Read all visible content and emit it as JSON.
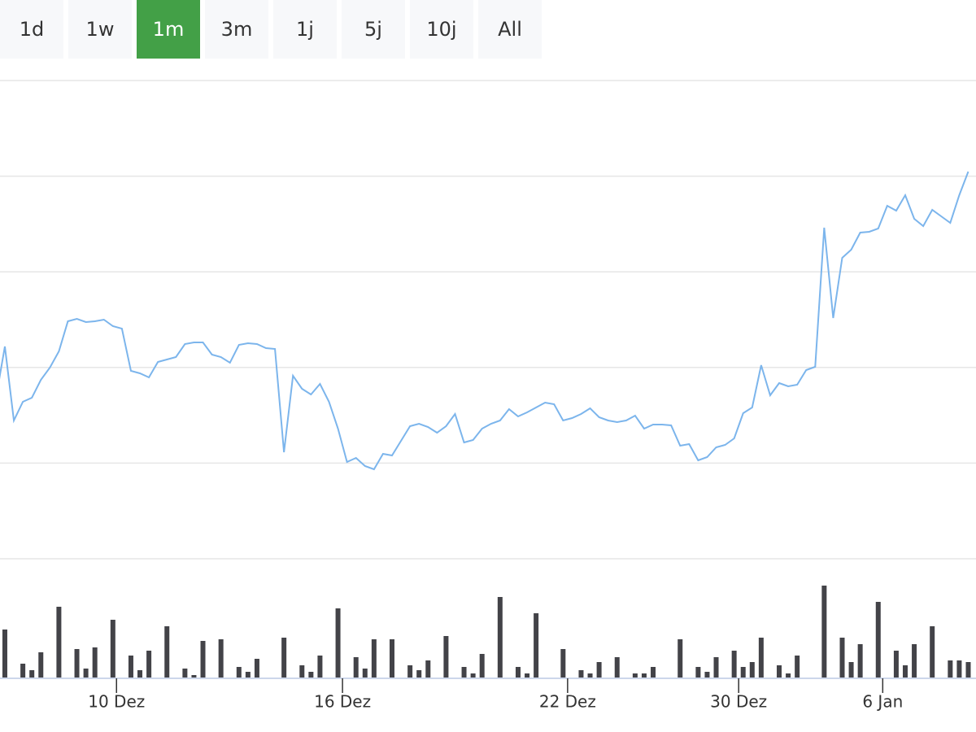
{
  "range_buttons": {
    "labels": [
      "1d",
      "1w",
      "1m",
      "3m",
      "1j",
      "5j",
      "10j",
      "All"
    ],
    "selected": 2
  },
  "chart_data": {
    "type": "line",
    "x": [
      0,
      1,
      2,
      3,
      4,
      5,
      6,
      7,
      8,
      9,
      10,
      11,
      12,
      13,
      14,
      15,
      16,
      17,
      18,
      19,
      20,
      21,
      22,
      23,
      24,
      25,
      26,
      27,
      28,
      29,
      30,
      31,
      32,
      33,
      34,
      35,
      36,
      37,
      38,
      39,
      40,
      41,
      42,
      43,
      44,
      45,
      46,
      47,
      48,
      49,
      50,
      51,
      52,
      53,
      54,
      55,
      56,
      57,
      58,
      59,
      60,
      61,
      62,
      63,
      64,
      65,
      66,
      67,
      68,
      69,
      70,
      71,
      72,
      73,
      74,
      75,
      76,
      77,
      78,
      79,
      80,
      81,
      82,
      83,
      84,
      85,
      86,
      87,
      88,
      89,
      90,
      91,
      92,
      93,
      94,
      95,
      96,
      97,
      98,
      99,
      100,
      101,
      102,
      103,
      104,
      105,
      106,
      107,
      108
    ],
    "series": [
      {
        "color": "#7cb5ec",
        "values": [
          197,
          261,
          170,
          193,
          198,
          220,
          235,
          255,
          292,
          295,
          291,
          292,
          294,
          286,
          283,
          231,
          228,
          223,
          242,
          245,
          248,
          264,
          266,
          266,
          251,
          248,
          241,
          263,
          265,
          264,
          259,
          258,
          131,
          225,
          209,
          202,
          215,
          193,
          160,
          119,
          124,
          114,
          110,
          129,
          127,
          145,
          163,
          166,
          162,
          155,
          163,
          178,
          143,
          146,
          160,
          166,
          170,
          184,
          175,
          180,
          186,
          192,
          190,
          170,
          173,
          178,
          185,
          174,
          170,
          168,
          170,
          176,
          160,
          165,
          165,
          164,
          139,
          141,
          121,
          125,
          137,
          140,
          148,
          179,
          186,
          238,
          201,
          216,
          212,
          214,
          232,
          236,
          407,
          296,
          370,
          380,
          401,
          402,
          406,
          434,
          428,
          447,
          418,
          409,
          429,
          421,
          413,
          447,
          476
        ]
      }
    ],
    "volume": {
      "color": "#434348",
      "x": [
        1,
        3,
        4,
        5,
        7,
        9,
        10,
        11,
        13,
        15,
        16,
        17,
        19,
        21,
        22,
        23,
        25,
        27,
        28,
        29,
        32,
        34,
        35,
        36,
        38,
        40,
        41,
        42,
        44,
        46,
        47,
        48,
        50,
        52,
        53,
        54,
        56,
        58,
        59,
        60,
        63,
        65,
        66,
        67,
        69,
        71,
        72,
        73,
        76,
        78,
        79,
        80,
        82,
        83,
        84,
        85,
        87,
        88,
        89,
        92,
        94,
        95,
        96,
        98,
        100,
        101,
        102,
        104,
        106,
        107,
        108
      ],
      "values": [
        59,
        17,
        9,
        31,
        87,
        35,
        11,
        37,
        71,
        27,
        9,
        33,
        63,
        11,
        3,
        45,
        47,
        13,
        7,
        23,
        49,
        15,
        7,
        27,
        85,
        25,
        11,
        47,
        47,
        15,
        9,
        21,
        51,
        13,
        5,
        29,
        99,
        13,
        5,
        79,
        35,
        9,
        5,
        19,
        25,
        5,
        5,
        13,
        47,
        13,
        7,
        25,
        33,
        13,
        19,
        49,
        15,
        5,
        27,
        113,
        49,
        19,
        41,
        93,
        33,
        15,
        41,
        63,
        21,
        21,
        19
      ],
      "ylim": [
        0,
        146
      ]
    },
    "xlim": [
      0.46,
      108.86
    ],
    "xticks": [
      {
        "value": 13.4,
        "label": "10 Dez"
      },
      {
        "value": 38.5,
        "label": "16 Dez"
      },
      {
        "value": 63.5,
        "label": "22 Dez"
      },
      {
        "value": 82.5,
        "label": "30 Dez"
      },
      {
        "value": 98.5,
        "label": "6 Jan"
      }
    ],
    "ylim": [
      0,
      588
    ],
    "grid_lines": [
      0,
      117.6,
      235.2,
      352.8,
      470.4,
      588
    ],
    "grid": true
  }
}
